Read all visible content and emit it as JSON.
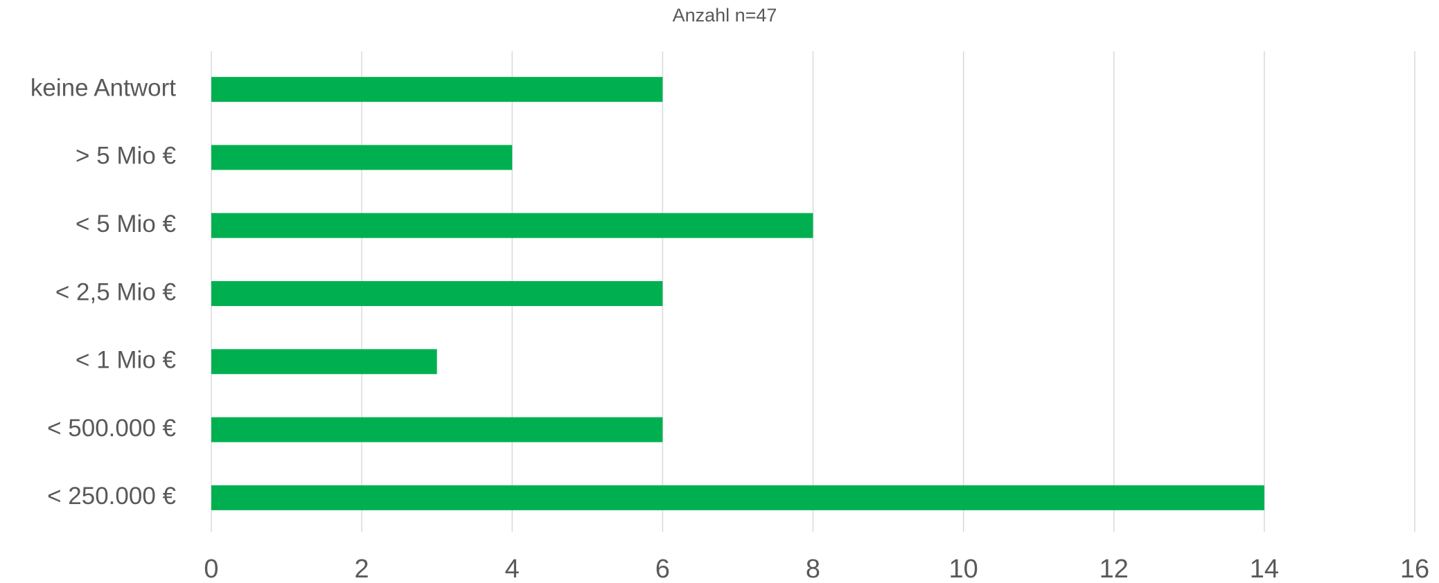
{
  "chart_data": {
    "type": "barh",
    "title": "Anzahl n=47",
    "categories": [
      "keine Antwort",
      "> 5 Mio €",
      "< 5 Mio €",
      "< 2,5 Mio €",
      "< 1 Mio €",
      "< 500.000 €",
      "< 250.000 €"
    ],
    "values": [
      6,
      4,
      8,
      6,
      3,
      6,
      14
    ],
    "color": "#00b050",
    "xlim": [
      0,
      16
    ],
    "xticks": [
      0,
      2,
      4,
      6,
      8,
      10,
      12,
      14,
      16
    ],
    "grid": true
  }
}
